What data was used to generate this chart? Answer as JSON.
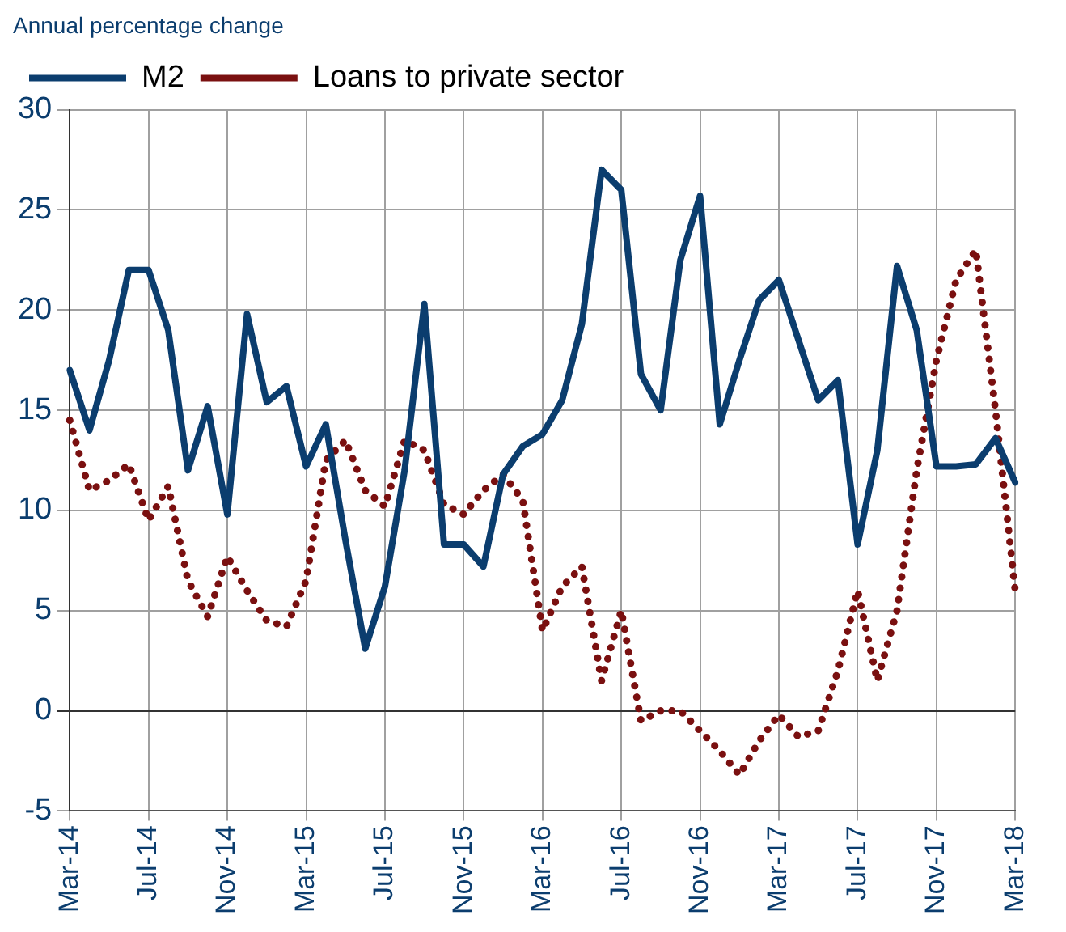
{
  "chart_data": {
    "type": "line",
    "title": "Annual percentage change",
    "legend": "top left",
    "grid": true,
    "marker": "none",
    "categories": [
      "Mar-14",
      null,
      null,
      null,
      "Jul-14",
      null,
      null,
      null,
      "Nov-14",
      null,
      null,
      null,
      "Mar-15",
      null,
      null,
      null,
      "Jul-15",
      null,
      null,
      null,
      "Nov-15",
      null,
      null,
      null,
      "Mar-16",
      null,
      null,
      null,
      "Jul-16",
      null,
      null,
      null,
      "Nov-16",
      null,
      null,
      null,
      "Mar-17",
      null,
      null,
      null,
      "Jul-17",
      null,
      null,
      null,
      "Nov-17",
      null,
      null,
      null,
      "Mar-18"
    ],
    "ylim": [
      -5,
      30
    ],
    "yticks": [
      -5,
      0,
      5,
      10,
      15,
      20,
      25,
      30
    ],
    "series": [
      {
        "name": "M2",
        "color": "#0b3d6e",
        "line_style": "solid",
        "values": [
          17,
          14,
          17.5,
          22,
          22,
          19,
          12,
          15.2,
          9.8,
          19.8,
          15.4,
          16.2,
          12.2,
          14.3,
          8.5,
          3.1,
          6.2,
          12,
          20.3,
          8.3,
          8.3,
          7.2,
          11.8,
          13.2,
          13.8,
          15.5,
          19.3,
          27,
          26,
          16.8,
          15,
          22.5,
          25.7,
          14.3,
          17.5,
          20.5,
          21.5,
          18.5,
          15.5,
          16.5,
          8.3,
          13,
          22.2,
          19,
          12.2,
          12.2,
          12.3,
          13.6,
          11.4
        ]
      },
      {
        "name": "Loans to private sector",
        "color": "#7a1010",
        "line_style": "dotted",
        "values": [
          14.5,
          11,
          11.5,
          12.3,
          9.5,
          11.2,
          6.5,
          4.7,
          7.7,
          6,
          4.5,
          4.2,
          6.5,
          12.5,
          13.5,
          11,
          10.2,
          13.5,
          13,
          10.3,
          9.8,
          11,
          11.8,
          10.5,
          4,
          6.2,
          7.2,
          1.5,
          5,
          -0.5,
          0,
          0,
          -1,
          -2,
          -3.2,
          -1.5,
          -0.2,
          -1.3,
          -1,
          2,
          6,
          1.5,
          5,
          12,
          17.5,
          21.5,
          23,
          15,
          6
        ]
      }
    ]
  }
}
